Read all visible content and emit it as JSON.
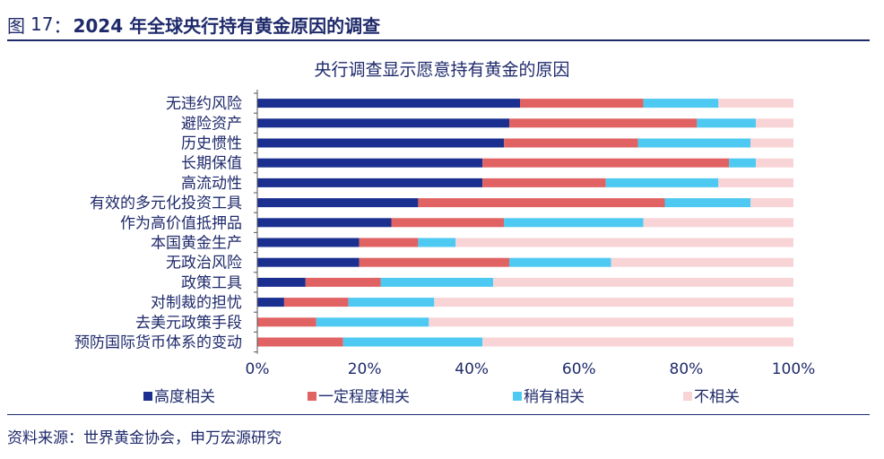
{
  "header": {
    "figure_label": "图",
    "figure_number": "17",
    "separator": "：",
    "title": "2024 年全球央行持有黄金原因的调查"
  },
  "chart_data": {
    "type": "bar",
    "orientation": "horizontal",
    "stacked": true,
    "title": "央行调查显示愿意持有黄金的原因",
    "xlabel": "",
    "ylabel": "",
    "xlim": [
      0,
      100
    ],
    "x_ticks": [
      "0%",
      "20%",
      "40%",
      "60%",
      "80%",
      "100%"
    ],
    "grid": false,
    "legend_position": "bottom",
    "categories": [
      "无违约风险",
      "避险资产",
      "历史惯性",
      "长期保值",
      "高流动性",
      "有效的多元化投资工具",
      "作为高价值抵押品",
      "本国黄金生产",
      "无政治风险",
      "政策工具",
      "对制裁的担忧",
      "去美元政策手段",
      "预防国际货币体系的变动"
    ],
    "series": [
      {
        "name": "高度相关",
        "color": "#1a2f8f",
        "values": [
          49,
          47,
          46,
          42,
          42,
          30,
          25,
          19,
          19,
          9,
          5,
          0,
          0
        ]
      },
      {
        "name": "一定程度相关",
        "color": "#e06262",
        "values": [
          23,
          35,
          25,
          46,
          23,
          46,
          21,
          11,
          28,
          14,
          12,
          11,
          16
        ]
      },
      {
        "name": "稍有相关",
        "color": "#4dc9f2",
        "values": [
          14,
          11,
          21,
          5,
          21,
          16,
          26,
          7,
          19,
          21,
          16,
          21,
          26
        ]
      },
      {
        "name": "不相关",
        "color": "#f9d4d6",
        "values": [
          14,
          7,
          8,
          7,
          14,
          8,
          28,
          63,
          34,
          56,
          67,
          68,
          58
        ]
      }
    ]
  },
  "source": {
    "label": "资料来源：",
    "text": "世界黄金协会，申万宏源研究"
  }
}
